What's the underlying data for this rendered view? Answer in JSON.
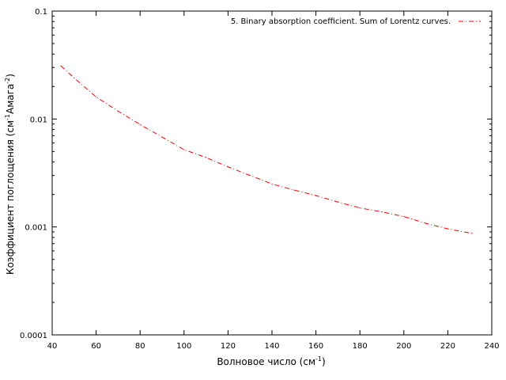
{
  "chart_data": {
    "type": "line",
    "xlabel": {
      "main": "Волновое число (см",
      "sup": "-1",
      "tail": ")"
    },
    "ylabel": {
      "part1": "Коэффициент поглощения (см",
      "sup1": "-1",
      "part2": "Амага",
      "sup2": "-2",
      "part3": ")"
    },
    "x_scale": "linear",
    "y_scale": "log",
    "xlim": [
      40,
      240
    ],
    "ylim": [
      0.0001,
      0.1
    ],
    "x_ticks": [
      40,
      60,
      80,
      100,
      120,
      140,
      160,
      180,
      200,
      220,
      240
    ],
    "y_ticks": [
      0.0001,
      0.001,
      0.01,
      0.1
    ],
    "x_tick_labels": [
      "40",
      "60",
      "80",
      "100",
      "120",
      "140",
      "160",
      "180",
      "200",
      "220",
      "240"
    ],
    "y_tick_labels": [
      "0.0001",
      "0.001",
      "0.01",
      "0.1"
    ],
    "grid": false,
    "legend_position": "top-right",
    "series": [
      {
        "name": "5. Binary absorption coefficient. Sum of Lorentz curves.",
        "color": "#ff0000",
        "line_style": "dash-dot",
        "x": [
          44,
          50,
          60,
          70,
          80,
          90,
          100,
          110,
          120,
          130,
          140,
          150,
          160,
          170,
          180,
          190,
          200,
          210,
          220,
          231
        ],
        "y": [
          0.031,
          0.024,
          0.016,
          0.0118,
          0.0089,
          0.0068,
          0.0052,
          0.0044,
          0.0036,
          0.003,
          0.0025,
          0.0022,
          0.00195,
          0.0017,
          0.0015,
          0.00138,
          0.00125,
          0.00108,
          0.00096,
          0.00087
        ]
      }
    ]
  }
}
